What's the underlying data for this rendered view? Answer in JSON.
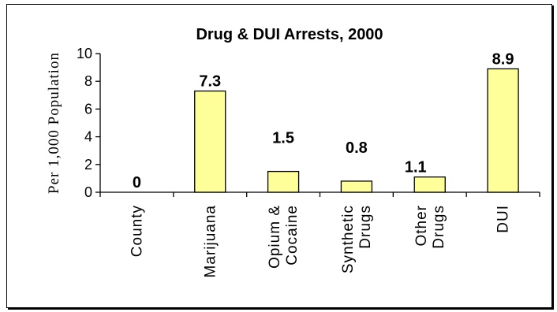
{
  "chart_data": {
    "type": "bar",
    "title": "Drug & DUI Arrests,  2000",
    "xlabel": "",
    "ylabel": "Per 1,000 Population",
    "ylim": [
      0,
      10
    ],
    "yticks": [
      0,
      2,
      4,
      6,
      8,
      10
    ],
    "categories": [
      [
        "County"
      ],
      [
        "Marijuana"
      ],
      [
        "Opium &",
        "Cocaine"
      ],
      [
        "Synthetic",
        "Drugs"
      ],
      [
        "Other",
        "Drugs"
      ],
      [
        "DUI"
      ]
    ],
    "values": [
      0,
      7.3,
      1.5,
      0.8,
      1.1,
      8.9
    ],
    "data_labels": [
      "0",
      "7.3",
      "1.5",
      "0.8",
      "1.1",
      "8.9"
    ],
    "bar_color": "#ffff99",
    "grid": false,
    "legend": "none"
  }
}
